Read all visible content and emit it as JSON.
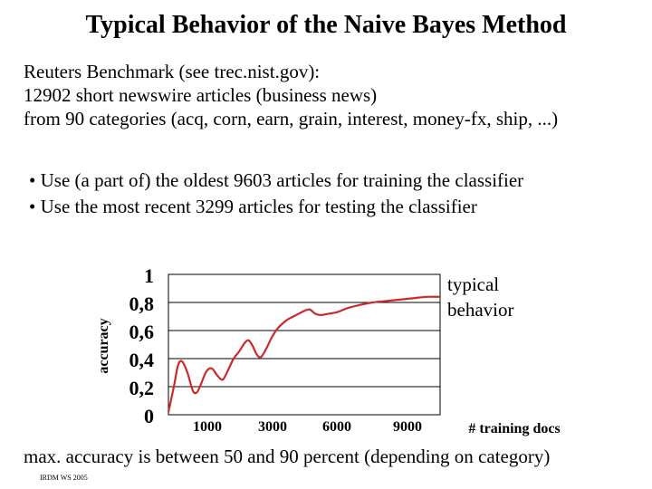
{
  "title": "Typical Behavior of the Naive Bayes Method",
  "intro_lines": [
    "Reuters Benchmark (see trec.nist.gov):",
    "12902 short newswire articles (business news)",
    "from 90 categories (acq, corn, earn, grain, interest, money-fx, ship, ...)"
  ],
  "bullets": [
    "• Use (a part of) the oldest 9603 articles for training the classifier",
    "• Use the most recent 3299 articles for testing the classifier"
  ],
  "annotation_lines": [
    "typical",
    "behavior"
  ],
  "footer": "max. accuracy is between 50 and 90 percent (depending on category)",
  "credit": "IRDM WS 2005",
  "colors": {
    "curve": "#cc2a2a",
    "grid": "#000000"
  },
  "chart_data": {
    "type": "line",
    "ylabel": "accuracy",
    "xlabel": "# training docs",
    "y_ticks": [
      "1",
      "0,8",
      "0,6",
      "0,4",
      "0,2",
      "0"
    ],
    "x_ticks": [
      "1000",
      "3000",
      "6000",
      "9000"
    ],
    "ylim": [
      0,
      1
    ],
    "grid": true,
    "x_index_range": [
      0,
      100
    ],
    "series": [
      {
        "points": [
          [
            0,
            0.02
          ],
          [
            2,
            0.2
          ],
          [
            3.5,
            0.35
          ],
          [
            5,
            0.38
          ],
          [
            7,
            0.3
          ],
          [
            9,
            0.17
          ],
          [
            10.5,
            0.16
          ],
          [
            12,
            0.22
          ],
          [
            14,
            0.31
          ],
          [
            16,
            0.33
          ],
          [
            18,
            0.28
          ],
          [
            20,
            0.25
          ],
          [
            22,
            0.32
          ],
          [
            24,
            0.4
          ],
          [
            26,
            0.45
          ],
          [
            28,
            0.51
          ],
          [
            29.5,
            0.53
          ],
          [
            31,
            0.49
          ],
          [
            32.5,
            0.43
          ],
          [
            34,
            0.41
          ],
          [
            36,
            0.47
          ],
          [
            38,
            0.55
          ],
          [
            40,
            0.61
          ],
          [
            42,
            0.65
          ],
          [
            44,
            0.68
          ],
          [
            46,
            0.7
          ],
          [
            48,
            0.72
          ],
          [
            50,
            0.74
          ],
          [
            52,
            0.75
          ],
          [
            54,
            0.72
          ],
          [
            56,
            0.71
          ],
          [
            59,
            0.72
          ],
          [
            62,
            0.73
          ],
          [
            66,
            0.76
          ],
          [
            70,
            0.78
          ],
          [
            75,
            0.8
          ],
          [
            80,
            0.81
          ],
          [
            85,
            0.82
          ],
          [
            90,
            0.83
          ],
          [
            95,
            0.84
          ],
          [
            100,
            0.84
          ]
        ]
      }
    ]
  }
}
